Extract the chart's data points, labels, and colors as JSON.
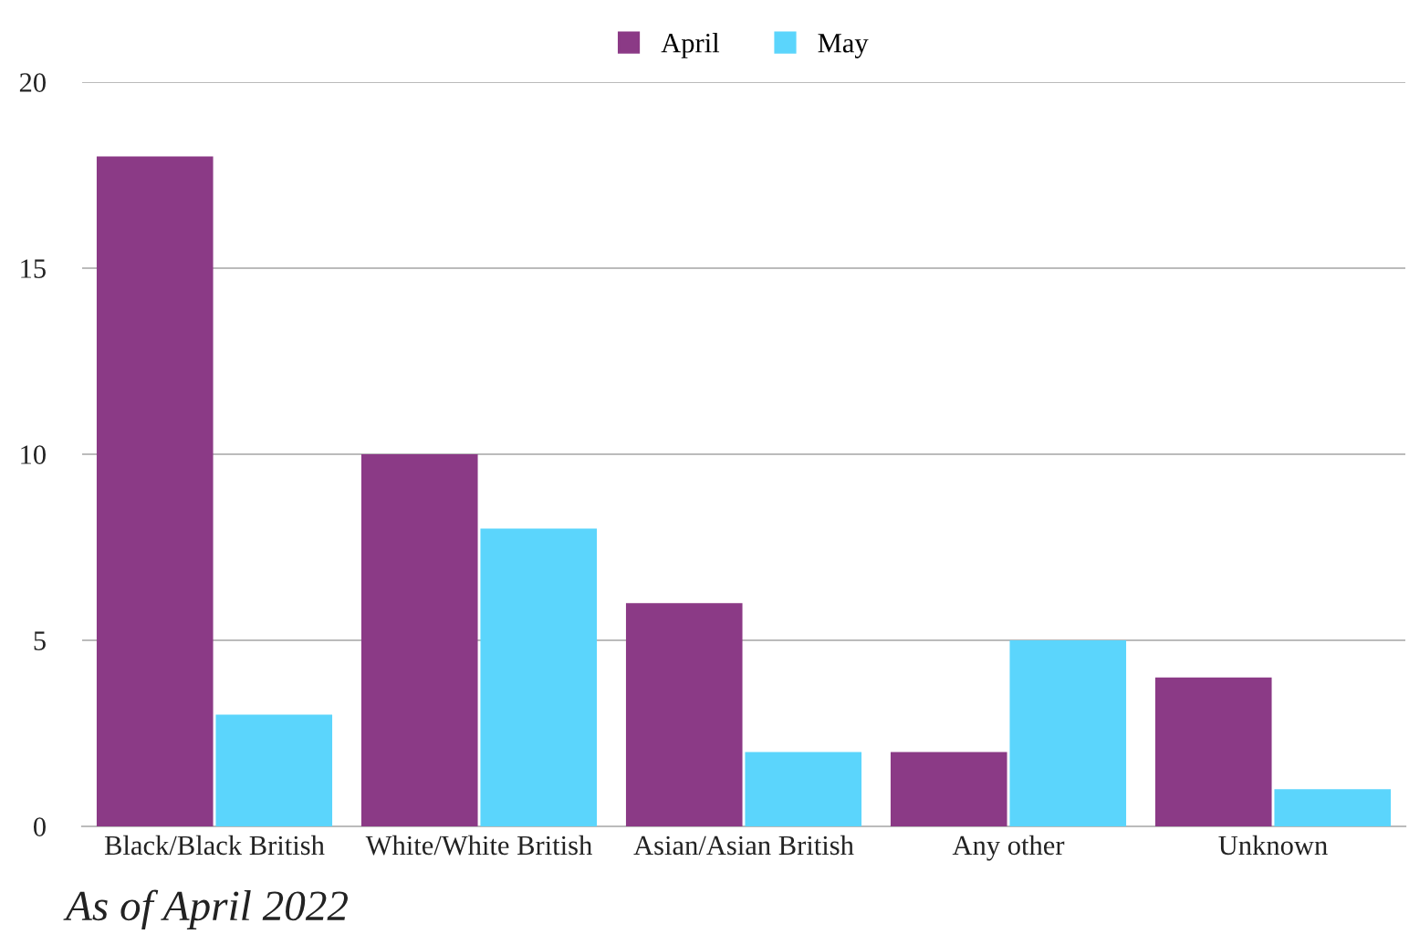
{
  "chart_data": {
    "type": "bar",
    "categories": [
      "Black/Black British",
      "White/White British",
      "Asian/Asian British",
      "Any other",
      "Unknown"
    ],
    "series": [
      {
        "name": "April",
        "color": "#8b3a86",
        "values": [
          18,
          10,
          6,
          2,
          4
        ]
      },
      {
        "name": "May",
        "color": "#5bd5fc",
        "values": [
          3,
          8,
          2,
          5,
          1
        ]
      }
    ],
    "ylim": [
      0,
      20
    ],
    "yticks": [
      0,
      5,
      10,
      15,
      20
    ],
    "grid": "y",
    "legend": "top",
    "annotations": [
      "As of April 2022"
    ]
  }
}
